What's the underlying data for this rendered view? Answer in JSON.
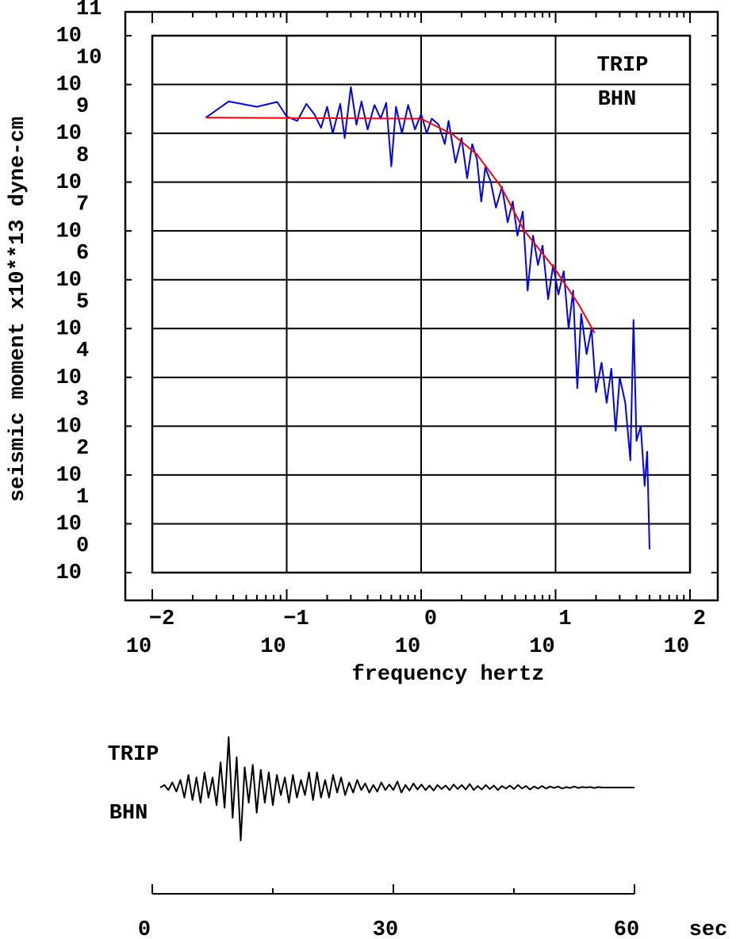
{
  "chart_data": [
    {
      "type": "line",
      "xlabel": "frequency  hertz",
      "ylabel": "seismic moment x10**13 dyne-cm",
      "annotations": [
        "TRIP",
        "BHN"
      ],
      "log_x": true,
      "log_y": true,
      "grid": true,
      "xlim": [
        0.01,
        100
      ],
      "ylim": [
        1,
        100000000000.0
      ],
      "xticks": [
        {
          "value": 0.01,
          "label": "10",
          "exponent": "−2"
        },
        {
          "value": 0.1,
          "label": "10",
          "exponent": "−1"
        },
        {
          "value": 1,
          "label": "10",
          "exponent": "0"
        },
        {
          "value": 10,
          "label": "10",
          "exponent": "1"
        },
        {
          "value": 100,
          "label": "10",
          "exponent": "2"
        }
      ],
      "minor_xticks": [
        0.02,
        0.03,
        0.04,
        0.05,
        0.06,
        0.07,
        0.08,
        0.09,
        0.2,
        0.3,
        0.4,
        0.5,
        0.6,
        0.7,
        0.8,
        0.9,
        2,
        3,
        4,
        5,
        6,
        7,
        8,
        9,
        20,
        30,
        40,
        50,
        60,
        70,
        80,
        90
      ],
      "yticks": [
        {
          "value": 1,
          "label": "10",
          "exponent": "0"
        },
        {
          "value": 10,
          "label": "10",
          "exponent": "1"
        },
        {
          "value": 100,
          "label": "10",
          "exponent": "2"
        },
        {
          "value": 1000,
          "label": "10",
          "exponent": "3"
        },
        {
          "value": 10000,
          "label": "10",
          "exponent": "4"
        },
        {
          "value": 100000,
          "label": "10",
          "exponent": "5"
        },
        {
          "value": 1000000,
          "label": "10",
          "exponent": "6"
        },
        {
          "value": 10000000,
          "label": "10",
          "exponent": "7"
        },
        {
          "value": 100000000,
          "label": "10",
          "exponent": "8"
        },
        {
          "value": 1000000000,
          "label": "10",
          "exponent": "9"
        },
        {
          "value": 10000000000,
          "label": "10",
          "exponent": "10"
        },
        {
          "value": 100000000000,
          "label": "10",
          "exponent": "11"
        }
      ],
      "series": [
        {
          "color": "#0000ff",
          "x": [
            0.025,
            0.037,
            0.06,
            0.085,
            0.1,
            0.12,
            0.14,
            0.16,
            0.18,
            0.2,
            0.22,
            0.25,
            0.27,
            0.3,
            0.33,
            0.36,
            0.4,
            0.45,
            0.5,
            0.55,
            0.6,
            0.65,
            0.72,
            0.8,
            0.9,
            1.0,
            1.1,
            1.2,
            1.35,
            1.5,
            1.6,
            1.8,
            2.0,
            2.2,
            2.4,
            2.6,
            2.8,
            3.0,
            3.3,
            3.6,
            4.0,
            4.4,
            4.8,
            5.2,
            5.7,
            6.2,
            6.8,
            7.4,
            8.0,
            8.8,
            9.6,
            10.5,
            11.5,
            12.5,
            13.5,
            14.5,
            15.5,
            17,
            18.5,
            20,
            22,
            24,
            26,
            28,
            30,
            33,
            36,
            38,
            40,
            43,
            46,
            48,
            50
          ],
          "values": [
            2100000000,
            4500000000,
            3500000000,
            4400000000,
            2200000000,
            1800000000,
            4000000000,
            2500000000,
            1300000000,
            3500000000,
            1000000000,
            4000000000,
            800000000,
            8900000000,
            1500000000,
            4500000000,
            1200000000,
            3800000000,
            2000000000,
            4200000000,
            210000000,
            3500000000,
            1000000000,
            3800000000,
            1200000000,
            2500000000,
            1000000000,
            2000000000,
            1500000000,
            600000000,
            1800000000,
            250000000,
            800000000,
            120000000,
            600000000,
            300000000,
            40000000,
            200000000,
            100000000,
            30000000,
            80000000,
            15000000,
            40000000,
            8000000,
            25000000,
            600000,
            8000000,
            2000000,
            5000000,
            400000,
            2000000,
            500000,
            1500000,
            100000,
            600000,
            6000,
            200000,
            30000,
            100000,
            5000,
            20000,
            3000,
            15000,
            800,
            10000,
            3000,
            200,
            150000,
            500,
            1000,
            60,
            300,
            3
          ]
        },
        {
          "color": "#ff0000",
          "x": [
            0.025,
            1,
            1.72,
            2.6,
            3.9,
            5.8,
            10,
            15,
            19.5
          ],
          "values": [
            2100000000,
            2000000000,
            950000000,
            370000000,
            83000000,
            10500000,
            1600000,
            300000,
            81000
          ]
        }
      ]
    },
    {
      "type": "line",
      "annotations": [
        "TRIP",
        "BHN"
      ],
      "xunit": "sec",
      "xlim": [
        0,
        60
      ],
      "ylim": [
        -1.1,
        1.1
      ],
      "xticks": [
        0,
        30,
        60
      ],
      "minor_xticks": [
        15,
        45
      ],
      "series": [
        {
          "color": "#000000",
          "x": [
            1,
            1.5,
            2,
            2.5,
            3,
            3.5,
            4,
            4.5,
            5,
            5.5,
            6,
            6.5,
            7,
            7.5,
            8,
            8.5,
            9,
            9.5,
            10,
            10.5,
            11,
            11.5,
            12,
            12.5,
            13,
            13.5,
            14,
            14.5,
            15,
            15.5,
            16,
            16.5,
            17,
            17.5,
            18,
            18.5,
            19,
            19.5,
            20,
            20.5,
            21,
            21.5,
            22,
            22.5,
            23,
            23.5,
            24,
            24.5,
            25,
            25.5,
            26,
            26.5,
            27,
            27.5,
            28,
            28.5,
            29,
            29.5,
            30,
            30.5,
            31,
            31.5,
            32,
            32.5,
            33,
            33.5,
            34,
            34.5,
            35,
            35.5,
            36,
            36.5,
            37,
            37.5,
            38,
            38.5,
            39,
            39.5,
            40,
            40.5,
            41,
            41.5,
            42,
            42.5,
            43,
            43.5,
            44,
            44.5,
            45,
            45.5,
            46,
            46.5,
            47,
            47.5,
            48,
            48.5,
            49,
            49.5,
            50,
            50.5,
            51,
            51.5,
            52,
            52.5,
            53,
            53.5,
            54,
            54.5,
            55,
            55.5,
            56,
            58,
            60
          ],
          "values": [
            0,
            0.05,
            -0.05,
            0.1,
            -0.08,
            0.15,
            -0.2,
            0.25,
            -0.25,
            0.2,
            -0.3,
            0.3,
            -0.2,
            0.2,
            -0.35,
            0.5,
            -0.4,
            1.0,
            -0.6,
            0.6,
            -1.05,
            0.4,
            -0.3,
            0.45,
            -0.5,
            0.35,
            -0.3,
            0.3,
            -0.35,
            0.25,
            -0.15,
            0.2,
            -0.3,
            0.25,
            -0.2,
            0.15,
            -0.15,
            0.3,
            -0.25,
            0.3,
            -0.2,
            0.15,
            -0.2,
            0.25,
            -0.1,
            0.2,
            -0.15,
            0.1,
            -0.1,
            0.15,
            -0.05,
            0.08,
            -0.1,
            0.05,
            -0.08,
            0.1,
            -0.05,
            0.06,
            -0.05,
            0.12,
            -0.1,
            0.05,
            -0.06,
            0.08,
            -0.04,
            0.06,
            -0.05,
            0.04,
            -0.06,
            0.05,
            -0.03,
            0.04,
            -0.05,
            0.06,
            -0.03,
            0.05,
            -0.04,
            0.07,
            -0.05,
            0.03,
            -0.04,
            0.05,
            -0.03,
            0.04,
            -0.05,
            0.03,
            -0.02,
            0.04,
            -0.03,
            0.05,
            -0.02,
            0.03,
            -0.04,
            0.02,
            -0.02,
            0.03,
            -0.02,
            0.02,
            -0.01,
            0.02,
            -0.02,
            0.01,
            -0.01,
            0.02,
            -0.01,
            0.01,
            0,
            0.01,
            -0.01,
            0.01,
            0,
            0,
            0
          ]
        }
      ]
    }
  ]
}
